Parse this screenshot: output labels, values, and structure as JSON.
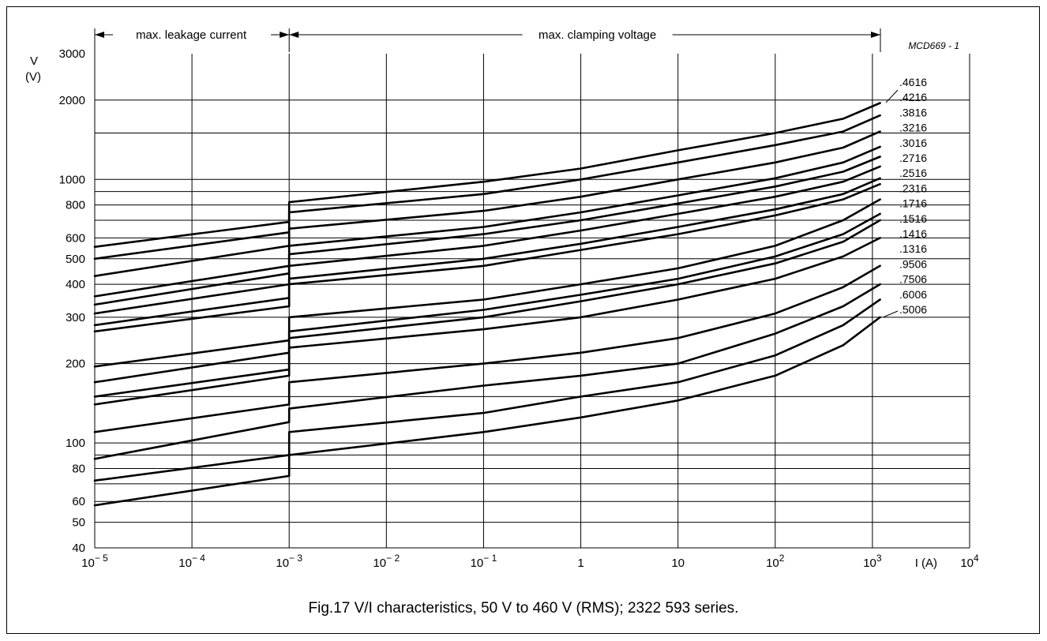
{
  "figure": {
    "code": "MCD669 - 1",
    "caption": "Fig.17  V/I characteristics, 50 V to 460 V (RMS); 2322 593 series.",
    "region_leakage": "max. leakage current",
    "region_clamping": "max. clamping voltage"
  },
  "chart_data": {
    "type": "line",
    "title": "",
    "xlabel": "I  (A)",
    "ylabel": "V (V)",
    "x_scale": "log",
    "y_scale": "log",
    "xlim": [
      1e-05,
      10000
    ],
    "ylim": [
      40,
      3000
    ],
    "grid": true,
    "legend": "labels at right end of curves",
    "colors": {
      "line": "#000000",
      "grid": "#000000",
      "background": "#ffffff"
    },
    "x_ticks": [
      {
        "value": 1e-05,
        "base": "10",
        "exp": "− 5"
      },
      {
        "value": 0.0001,
        "base": "10",
        "exp": "− 4"
      },
      {
        "value": 0.001,
        "base": "10",
        "exp": "− 3"
      },
      {
        "value": 0.01,
        "base": "10",
        "exp": "− 2"
      },
      {
        "value": 0.1,
        "base": "10",
        "exp": "− 1"
      },
      {
        "value": 1,
        "base": "1",
        "exp": ""
      },
      {
        "value": 10,
        "base": "10",
        "exp": ""
      },
      {
        "value": 100,
        "base": "10",
        "exp": "2"
      },
      {
        "value": 1000,
        "base": "10",
        "exp": "3"
      },
      {
        "value": 10000,
        "base": "10",
        "exp": "4"
      }
    ],
    "y_ticks": [
      40,
      50,
      60,
      80,
      100,
      200,
      300,
      400,
      500,
      600,
      800,
      1000,
      2000,
      3000
    ],
    "y_gridlines": [
      50,
      60,
      70,
      80,
      90,
      100,
      150,
      200,
      300,
      400,
      500,
      600,
      700,
      800,
      900,
      1000,
      1500,
      2000
    ],
    "series": [
      {
        "name": ".4616",
        "points": [
          [
            1e-05,
            555
          ],
          [
            0.001,
            690
          ],
          [
            0.001,
            820
          ],
          [
            0.1,
            980
          ],
          [
            1,
            1100
          ],
          [
            10,
            1290
          ],
          [
            100,
            1500
          ],
          [
            500,
            1700
          ],
          [
            1200,
            1950
          ]
        ]
      },
      {
        "name": ".4216",
        "points": [
          [
            1e-05,
            500
          ],
          [
            0.001,
            630
          ],
          [
            0.001,
            750
          ],
          [
            0.1,
            880
          ],
          [
            1,
            1000
          ],
          [
            10,
            1160
          ],
          [
            100,
            1350
          ],
          [
            500,
            1520
          ],
          [
            1200,
            1750
          ]
        ]
      },
      {
        "name": ".3816",
        "points": [
          [
            1e-05,
            430
          ],
          [
            0.001,
            560
          ],
          [
            0.001,
            650
          ],
          [
            0.1,
            760
          ],
          [
            1,
            860
          ],
          [
            10,
            1000
          ],
          [
            100,
            1160
          ],
          [
            500,
            1320
          ],
          [
            1200,
            1520
          ]
        ]
      },
      {
        "name": ".3216",
        "points": [
          [
            1e-05,
            360
          ],
          [
            0.001,
            470
          ],
          [
            0.001,
            560
          ],
          [
            0.1,
            660
          ],
          [
            1,
            750
          ],
          [
            10,
            870
          ],
          [
            100,
            1010
          ],
          [
            500,
            1160
          ],
          [
            1200,
            1330
          ]
        ]
      },
      {
        "name": ".3016",
        "points": [
          [
            1e-05,
            335
          ],
          [
            0.001,
            440
          ],
          [
            0.001,
            520
          ],
          [
            0.1,
            620
          ],
          [
            1,
            700
          ],
          [
            10,
            810
          ],
          [
            100,
            940
          ],
          [
            500,
            1070
          ],
          [
            1200,
            1220
          ]
        ]
      },
      {
        "name": ".2716",
        "points": [
          [
            1e-05,
            310
          ],
          [
            0.001,
            400
          ],
          [
            0.001,
            470
          ],
          [
            0.1,
            560
          ],
          [
            1,
            640
          ],
          [
            10,
            740
          ],
          [
            100,
            860
          ],
          [
            500,
            980
          ],
          [
            1200,
            1120
          ]
        ]
      },
      {
        "name": ".2516",
        "points": [
          [
            1e-05,
            280
          ],
          [
            0.001,
            355
          ],
          [
            0.001,
            420
          ],
          [
            0.1,
            500
          ],
          [
            1,
            570
          ],
          [
            10,
            660
          ],
          [
            100,
            770
          ],
          [
            500,
            880
          ],
          [
            1200,
            1010
          ]
        ]
      },
      {
        "name": ".2316",
        "points": [
          [
            1e-05,
            265
          ],
          [
            0.001,
            330
          ],
          [
            0.001,
            400
          ],
          [
            0.1,
            470
          ],
          [
            1,
            540
          ],
          [
            10,
            620
          ],
          [
            100,
            730
          ],
          [
            500,
            840
          ],
          [
            1200,
            960
          ]
        ]
      },
      {
        "name": ".1716",
        "points": [
          [
            1e-05,
            195
          ],
          [
            0.001,
            245
          ],
          [
            0.001,
            300
          ],
          [
            0.1,
            350
          ],
          [
            1,
            400
          ],
          [
            10,
            460
          ],
          [
            100,
            560
          ],
          [
            500,
            700
          ],
          [
            1200,
            840
          ]
        ]
      },
      {
        "name": ".1516",
        "points": [
          [
            1e-05,
            170
          ],
          [
            0.001,
            220
          ],
          [
            0.001,
            265
          ],
          [
            0.1,
            320
          ],
          [
            1,
            365
          ],
          [
            10,
            420
          ],
          [
            100,
            510
          ],
          [
            500,
            620
          ],
          [
            1200,
            740
          ]
        ]
      },
      {
        "name": ".1416",
        "points": [
          [
            1e-05,
            150
          ],
          [
            0.001,
            190
          ],
          [
            0.001,
            250
          ],
          [
            0.1,
            300
          ],
          [
            1,
            345
          ],
          [
            10,
            400
          ],
          [
            100,
            480
          ],
          [
            500,
            580
          ],
          [
            1200,
            700
          ]
        ]
      },
      {
        "name": ".1316",
        "points": [
          [
            1e-05,
            140
          ],
          [
            0.001,
            180
          ],
          [
            0.001,
            230
          ],
          [
            0.1,
            270
          ],
          [
            1,
            300
          ],
          [
            10,
            350
          ],
          [
            100,
            420
          ],
          [
            500,
            510
          ],
          [
            1200,
            600
          ]
        ]
      },
      {
        "name": ".9506",
        "points": [
          [
            1e-05,
            110
          ],
          [
            0.001,
            140
          ],
          [
            0.001,
            170
          ],
          [
            0.1,
            200
          ],
          [
            1,
            220
          ],
          [
            10,
            250
          ],
          [
            100,
            310
          ],
          [
            500,
            390
          ],
          [
            1200,
            470
          ]
        ]
      },
      {
        "name": ".7506",
        "points": [
          [
            1e-05,
            87
          ],
          [
            0.001,
            120
          ],
          [
            0.001,
            135
          ],
          [
            0.1,
            165
          ],
          [
            1,
            180
          ],
          [
            10,
            200
          ],
          [
            100,
            260
          ],
          [
            500,
            330
          ],
          [
            1200,
            400
          ]
        ]
      },
      {
        "name": ".6006",
        "points": [
          [
            1e-05,
            72
          ],
          [
            0.001,
            90
          ],
          [
            0.001,
            110
          ],
          [
            0.1,
            130
          ],
          [
            1,
            150
          ],
          [
            10,
            170
          ],
          [
            100,
            215
          ],
          [
            500,
            280
          ],
          [
            1200,
            350
          ]
        ]
      },
      {
        "name": ".5006",
        "points": [
          [
            1e-05,
            58
          ],
          [
            0.001,
            75
          ],
          [
            0.001,
            90
          ],
          [
            0.1,
            110
          ],
          [
            1,
            125
          ],
          [
            10,
            145
          ],
          [
            100,
            180
          ],
          [
            500,
            235
          ],
          [
            1200,
            300
          ]
        ]
      }
    ]
  }
}
